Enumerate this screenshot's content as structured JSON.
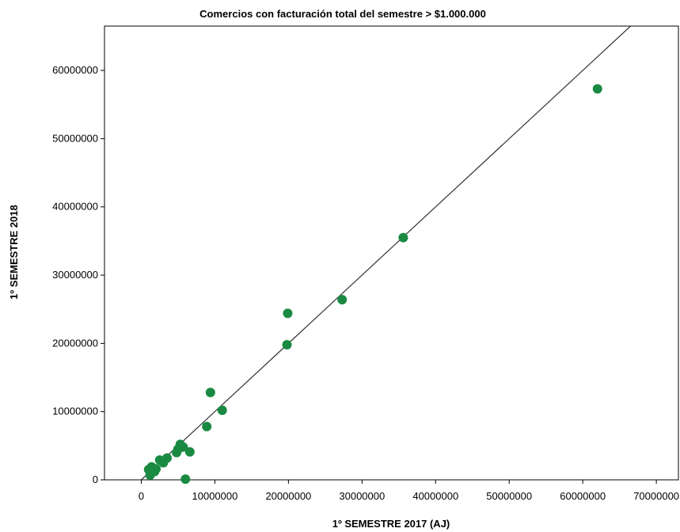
{
  "chart_data": {
    "type": "scatter",
    "title": "Comercios con facturación total del semestre > $1.000.000",
    "xlabel": "1º SEMESTRE 2017 (AJ)",
    "ylabel": "1º SEMESTRE 2018",
    "xlim": [
      -5000000,
      73000000
    ],
    "ylim": [
      0,
      66500000
    ],
    "x_ticks": [
      0,
      10000000,
      20000000,
      30000000,
      40000000,
      50000000,
      60000000,
      70000000
    ],
    "x_tick_labels": [
      "0",
      "10000000",
      "20000000",
      "30000000",
      "40000000",
      "50000000",
      "60000000",
      "70000000"
    ],
    "y_ticks": [
      0,
      10000000,
      20000000,
      30000000,
      40000000,
      50000000,
      60000000
    ],
    "y_tick_labels": [
      "0",
      "10000000",
      "20000000",
      "30000000",
      "40000000",
      "50000000",
      "60000000"
    ],
    "grid": false,
    "point_color": "#1a8a42",
    "line_color": "#333333",
    "fit_line": {
      "x": [
        0,
        66500000
      ],
      "y": [
        0,
        66500000
      ]
    },
    "points": [
      {
        "x": 1000000,
        "y": 1500000
      },
      {
        "x": 1200000,
        "y": 700000
      },
      {
        "x": 1400000,
        "y": 1900000
      },
      {
        "x": 1800000,
        "y": 1200000
      },
      {
        "x": 2000000,
        "y": 1600000
      },
      {
        "x": 2500000,
        "y": 2900000
      },
      {
        "x": 3000000,
        "y": 2500000
      },
      {
        "x": 3500000,
        "y": 3200000
      },
      {
        "x": 4800000,
        "y": 4000000
      },
      {
        "x": 5000000,
        "y": 4500000
      },
      {
        "x": 5300000,
        "y": 5200000
      },
      {
        "x": 5700000,
        "y": 4800000
      },
      {
        "x": 6000000,
        "y": 100000
      },
      {
        "x": 6600000,
        "y": 4100000
      },
      {
        "x": 8900000,
        "y": 7800000
      },
      {
        "x": 9400000,
        "y": 12800000
      },
      {
        "x": 11000000,
        "y": 10200000
      },
      {
        "x": 19800000,
        "y": 19800000
      },
      {
        "x": 19900000,
        "y": 24400000
      },
      {
        "x": 27300000,
        "y": 26400000
      },
      {
        "x": 35600000,
        "y": 35500000
      },
      {
        "x": 62000000,
        "y": 57300000
      }
    ]
  }
}
